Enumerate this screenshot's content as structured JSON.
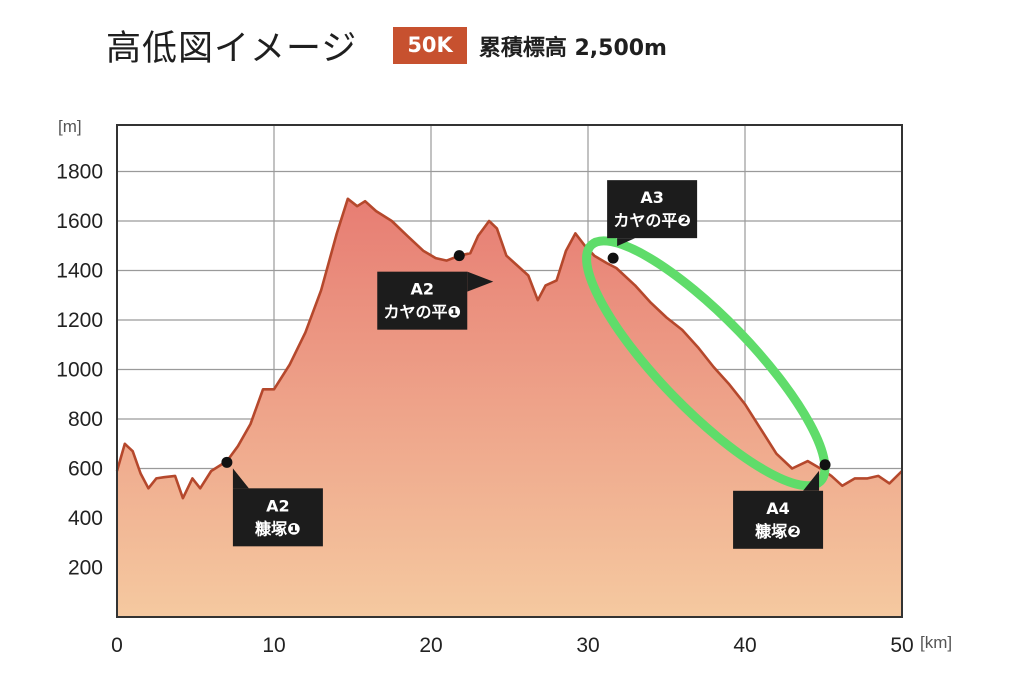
{
  "header": {
    "title": "高低図イメージ",
    "badge": "50K",
    "subtitle": "累積標高 2,500m"
  },
  "colors": {
    "badge": "#c7512f",
    "line": "#b5482c",
    "fill_top": "#e77d73",
    "fill_bottom": "#f5c9a0",
    "highlight": "#5fdc6a",
    "annotation_bg": "#1c1c1c"
  },
  "chart_data": {
    "type": "area",
    "title": "高低図イメージ",
    "xlabel": "[km]",
    "ylabel": "[m]",
    "xlim": [
      0,
      50
    ],
    "ylim": [
      0,
      1800
    ],
    "grid": true,
    "xticks": [
      0,
      10,
      20,
      30,
      40,
      50
    ],
    "yticks": [
      200,
      400,
      600,
      800,
      1000,
      1200,
      1400,
      1600,
      1800
    ],
    "profile": [
      [
        0,
        590
      ],
      [
        0.5,
        700
      ],
      [
        1,
        670
      ],
      [
        1.5,
        580
      ],
      [
        2,
        520
      ],
      [
        2.5,
        560
      ],
      [
        3,
        565
      ],
      [
        3.7,
        570
      ],
      [
        4.2,
        480
      ],
      [
        4.8,
        560
      ],
      [
        5.3,
        520
      ],
      [
        6,
        590
      ],
      [
        7,
        630
      ],
      [
        7.7,
        690
      ],
      [
        8.5,
        780
      ],
      [
        9.3,
        920
      ],
      [
        10,
        920
      ],
      [
        11,
        1020
      ],
      [
        12,
        1150
      ],
      [
        13,
        1320
      ],
      [
        14,
        1550
      ],
      [
        14.7,
        1690
      ],
      [
        15.3,
        1660
      ],
      [
        15.8,
        1680
      ],
      [
        16.5,
        1640
      ],
      [
        17.5,
        1600
      ],
      [
        18.5,
        1540
      ],
      [
        19.5,
        1480
      ],
      [
        20.3,
        1450
      ],
      [
        21,
        1440
      ],
      [
        21.8,
        1460
      ],
      [
        22.5,
        1470
      ],
      [
        23,
        1540
      ],
      [
        23.7,
        1600
      ],
      [
        24.2,
        1570
      ],
      [
        24.8,
        1460
      ],
      [
        25.5,
        1420
      ],
      [
        26.2,
        1380
      ],
      [
        26.8,
        1280
      ],
      [
        27.3,
        1340
      ],
      [
        28,
        1360
      ],
      [
        28.6,
        1480
      ],
      [
        29.2,
        1550
      ],
      [
        29.8,
        1500
      ],
      [
        30.4,
        1460
      ],
      [
        31.2,
        1430
      ],
      [
        31.8,
        1410
      ],
      [
        33,
        1340
      ],
      [
        34,
        1270
      ],
      [
        35,
        1210
      ],
      [
        36,
        1160
      ],
      [
        37,
        1090
      ],
      [
        38,
        1010
      ],
      [
        39,
        940
      ],
      [
        40,
        860
      ],
      [
        41,
        760
      ],
      [
        42,
        660
      ],
      [
        43,
        600
      ],
      [
        44,
        630
      ],
      [
        44.8,
        600
      ],
      [
        45.5,
        570
      ],
      [
        46.2,
        530
      ],
      [
        47,
        560
      ],
      [
        47.8,
        560
      ],
      [
        48.5,
        570
      ],
      [
        49.2,
        540
      ],
      [
        50,
        590
      ]
    ],
    "annotations": [
      {
        "code": "A2",
        "name": "糠塚❶",
        "x": 7.0,
        "y": 625,
        "box": "below-right"
      },
      {
        "code": "A2",
        "name": "カヤの平❶",
        "x": 21.8,
        "y": 1460,
        "box": "below"
      },
      {
        "code": "A3",
        "name": "カヤの平❷",
        "x": 31.6,
        "y": 1450,
        "box": "above"
      },
      {
        "code": "A4",
        "name": "糠塚❷",
        "x": 45.1,
        "y": 615,
        "box": "below-left"
      }
    ],
    "highlight": {
      "shape": "ellipse",
      "x_range": [
        31,
        44
      ],
      "y_range": [
        600,
        1450
      ],
      "color": "#5fdc6a"
    }
  }
}
